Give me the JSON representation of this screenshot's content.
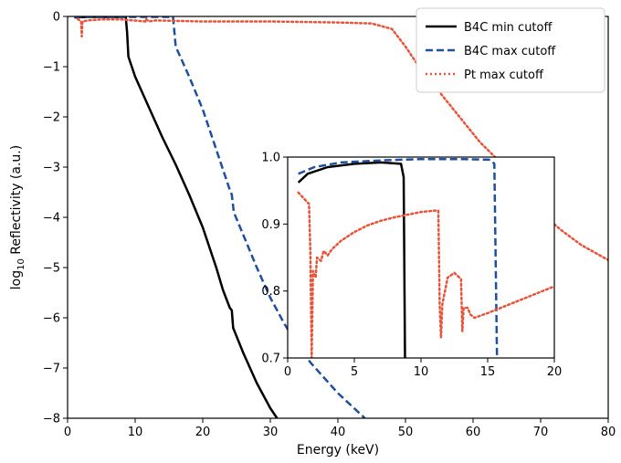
{
  "chart_data": {
    "type": "line",
    "xlabel": "Energy (keV)",
    "ylabel_prefix": "log",
    "ylabel_sub": "10",
    "ylabel_suffix": " Reflectivity (a.u.)",
    "xlim": [
      0,
      80
    ],
    "ylim": [
      -8,
      0
    ],
    "x_ticks": [
      0,
      10,
      20,
      30,
      40,
      50,
      60,
      70,
      80
    ],
    "y_ticks": [
      0,
      -1,
      -2,
      -3,
      -4,
      -5,
      -6,
      -7,
      -8
    ],
    "grid": false,
    "legend_position": "top-right",
    "series": [
      {
        "name": "B4C min cutoff",
        "color": "#000000",
        "style": "solid",
        "points": [
          [
            1,
            -0.02
          ],
          [
            3,
            -0.01
          ],
          [
            5,
            -0.01
          ],
          [
            7,
            -0.01
          ],
          [
            8.6,
            -0.01
          ],
          [
            8.8,
            -0.3
          ],
          [
            9,
            -0.8
          ],
          [
            10,
            -1.2
          ],
          [
            12,
            -1.8
          ],
          [
            14,
            -2.4
          ],
          [
            16,
            -2.95
          ],
          [
            18,
            -3.55
          ],
          [
            20,
            -4.2
          ],
          [
            22,
            -5.0
          ],
          [
            23,
            -5.45
          ],
          [
            24,
            -5.8
          ],
          [
            24.3,
            -5.85
          ],
          [
            24.5,
            -6.2
          ],
          [
            26,
            -6.7
          ],
          [
            28,
            -7.3
          ],
          [
            30,
            -7.8
          ],
          [
            31,
            -8.0
          ]
        ]
      },
      {
        "name": "B4C max cutoff",
        "color": "#1f4f9e",
        "style": "dashed",
        "points": [
          [
            1,
            -0.01
          ],
          [
            5,
            -0.01
          ],
          [
            10,
            -0.01
          ],
          [
            15,
            -0.01
          ],
          [
            15.6,
            -0.01
          ],
          [
            15.8,
            -0.3
          ],
          [
            16,
            -0.6
          ],
          [
            17,
            -0.9
          ],
          [
            18,
            -1.2
          ],
          [
            20,
            -1.85
          ],
          [
            22,
            -2.65
          ],
          [
            23,
            -3.05
          ],
          [
            24,
            -3.45
          ],
          [
            24.3,
            -3.55
          ],
          [
            24.6,
            -3.9
          ],
          [
            26,
            -4.35
          ],
          [
            28,
            -5.0
          ],
          [
            30,
            -5.6
          ],
          [
            32,
            -6.1
          ],
          [
            34,
            -6.55
          ],
          [
            36,
            -6.9
          ],
          [
            38,
            -7.2
          ],
          [
            40,
            -7.5
          ],
          [
            42,
            -7.75
          ],
          [
            44,
            -8.0
          ]
        ]
      },
      {
        "name": "Pt max cutoff",
        "color": "#e8533a",
        "style": "dotted",
        "points": [
          [
            1.5,
            -0.05
          ],
          [
            2,
            -0.1
          ],
          [
            2.1,
            -0.4
          ],
          [
            2.2,
            -0.1
          ],
          [
            3,
            -0.08
          ],
          [
            5,
            -0.06
          ],
          [
            8,
            -0.06
          ],
          [
            11.5,
            -0.1
          ],
          [
            11.6,
            -0.05
          ],
          [
            12,
            -0.1
          ],
          [
            13,
            -0.08
          ],
          [
            20,
            -0.1
          ],
          [
            30,
            -0.1
          ],
          [
            40,
            -0.12
          ],
          [
            45,
            -0.14
          ],
          [
            48,
            -0.25
          ],
          [
            50,
            -0.6
          ],
          [
            52,
            -1.0
          ],
          [
            55,
            -1.5
          ],
          [
            58,
            -2.0
          ],
          [
            61,
            -2.5
          ],
          [
            64,
            -2.9
          ],
          [
            65,
            -3.15
          ],
          [
            67,
            -3.5
          ],
          [
            70,
            -3.9
          ],
          [
            73,
            -4.25
          ],
          [
            76,
            -4.55
          ],
          [
            80,
            -4.85
          ]
        ]
      }
    ],
    "inset": {
      "xlim": [
        0,
        20
      ],
      "ylim": [
        0.7,
        1.0
      ],
      "x_ticks": [
        0,
        5,
        10,
        15,
        20
      ],
      "y_ticks": [
        0.7,
        0.8,
        0.9,
        1.0
      ],
      "y_tick_labels": [
        "0.7",
        "0.8",
        "0.9",
        "1.0"
      ],
      "series": [
        {
          "name": "B4C min cutoff",
          "color": "#000000",
          "style": "solid",
          "points": [
            [
              0.8,
              0.962
            ],
            [
              1.5,
              0.975
            ],
            [
              3,
              0.985
            ],
            [
              5,
              0.99
            ],
            [
              7,
              0.992
            ],
            [
              8.5,
              0.99
            ],
            [
              8.7,
              0.97
            ],
            [
              8.8,
              0.7
            ]
          ]
        },
        {
          "name": "B4C max cutoff",
          "color": "#1f4f9e",
          "style": "dashed",
          "points": [
            [
              0.8,
              0.975
            ],
            [
              2,
              0.985
            ],
            [
              4,
              0.992
            ],
            [
              7,
              0.995
            ],
            [
              10,
              0.997
            ],
            [
              13,
              0.997
            ],
            [
              15.2,
              0.996
            ],
            [
              15.5,
              0.99
            ],
            [
              15.7,
              0.7
            ]
          ]
        },
        {
          "name": "Pt max cutoff",
          "color": "#e8533a",
          "style": "dotted",
          "points": [
            [
              0.8,
              0.947
            ],
            [
              1.6,
              0.93
            ],
            [
              1.7,
              0.86
            ],
            [
              1.8,
              0.7
            ],
            [
              1.9,
              0.83
            ],
            [
              2.1,
              0.82
            ],
            [
              2.2,
              0.85
            ],
            [
              2.5,
              0.845
            ],
            [
              2.7,
              0.86
            ],
            [
              3,
              0.853
            ],
            [
              3.3,
              0.862
            ],
            [
              4,
              0.875
            ],
            [
              5,
              0.888
            ],
            [
              6,
              0.898
            ],
            [
              7,
              0.905
            ],
            [
              8,
              0.91
            ],
            [
              9,
              0.914
            ],
            [
              10,
              0.918
            ],
            [
              11,
              0.92
            ],
            [
              11.3,
              0.92
            ],
            [
              11.4,
              0.78
            ],
            [
              11.5,
              0.73
            ],
            [
              11.6,
              0.78
            ],
            [
              12,
              0.82
            ],
            [
              12.5,
              0.827
            ],
            [
              13,
              0.818
            ],
            [
              13.1,
              0.74
            ],
            [
              13.2,
              0.775
            ],
            [
              13.5,
              0.775
            ],
            [
              13.7,
              0.765
            ],
            [
              14,
              0.76
            ],
            [
              15,
              0.767
            ],
            [
              17,
              0.783
            ],
            [
              20,
              0.807
            ]
          ]
        }
      ]
    }
  }
}
